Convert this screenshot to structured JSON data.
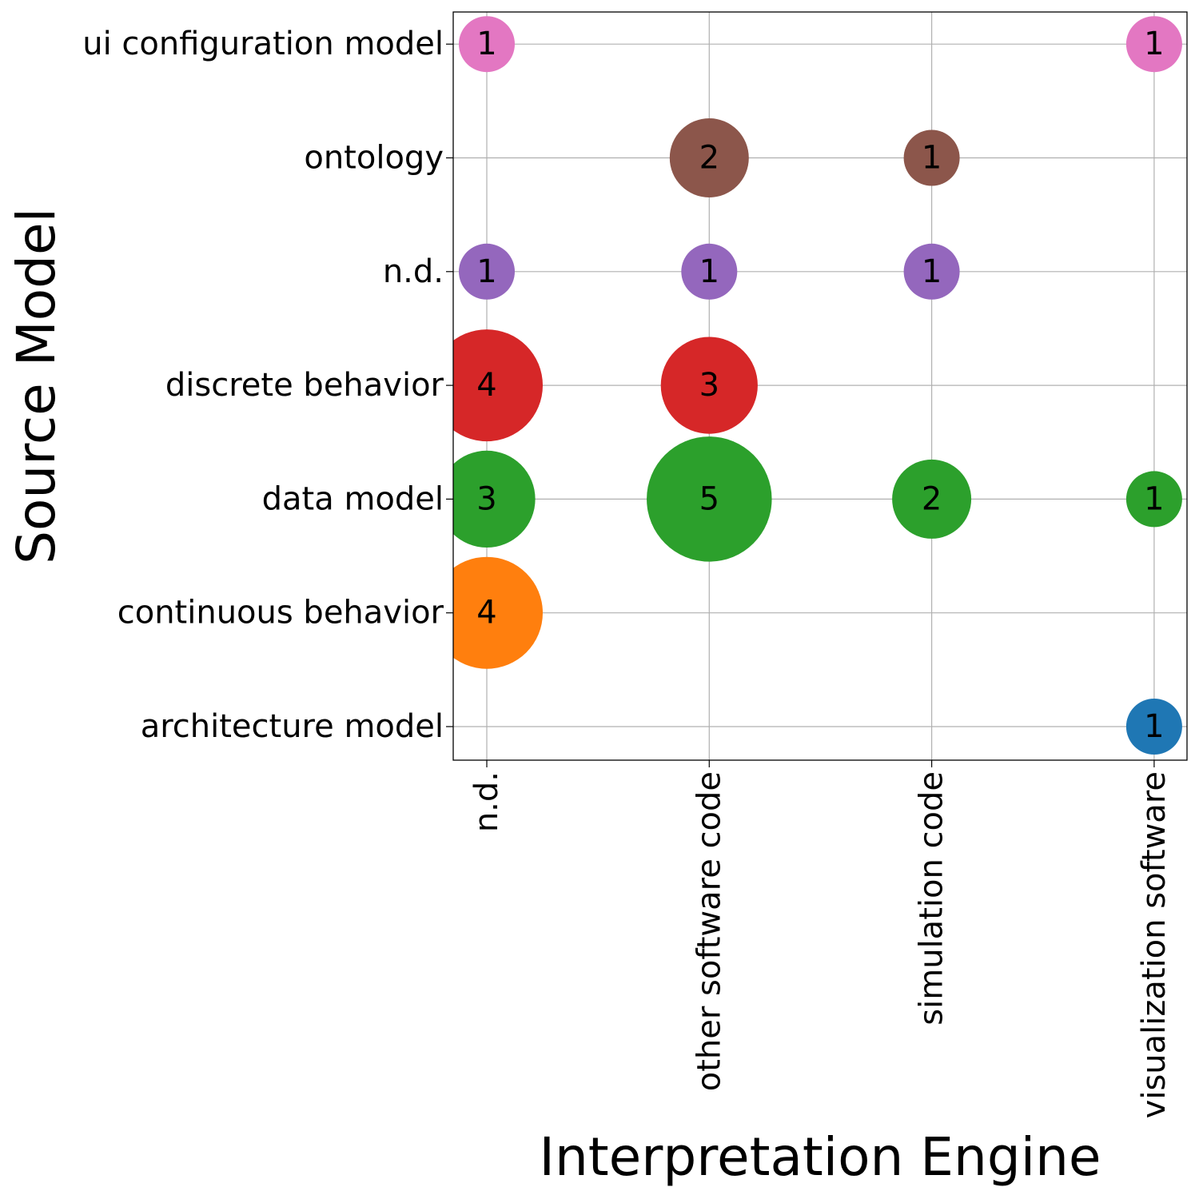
{
  "chart_data": {
    "type": "scatter",
    "subtype": "bubble",
    "title": "",
    "xlabel": "Interpretation Engine",
    "ylabel": "Source Model",
    "x_categories": [
      "n.d.",
      "other software code",
      "simulation code",
      "visualization software"
    ],
    "y_categories": [
      "architecture model",
      "continuous behavior",
      "data model",
      "discrete behavior",
      "n.d.",
      "ontology",
      "ui configuration model"
    ],
    "grid": true,
    "legend": "none",
    "series": [
      {
        "name": "architecture model",
        "color": "#1f77b4",
        "points": [
          {
            "x": "visualization software",
            "value": 1
          }
        ]
      },
      {
        "name": "continuous behavior",
        "color": "#ff7f0e",
        "points": [
          {
            "x": "n.d.",
            "value": 4
          }
        ]
      },
      {
        "name": "data model",
        "color": "#2ca02c",
        "points": [
          {
            "x": "n.d.",
            "value": 3
          },
          {
            "x": "other software code",
            "value": 5
          },
          {
            "x": "simulation code",
            "value": 2
          },
          {
            "x": "visualization software",
            "value": 1
          }
        ]
      },
      {
        "name": "discrete behavior",
        "color": "#d62728",
        "points": [
          {
            "x": "n.d.",
            "value": 4
          },
          {
            "x": "other software code",
            "value": 3
          }
        ]
      },
      {
        "name": "n.d.",
        "color": "#9467bd",
        "points": [
          {
            "x": "n.d.",
            "value": 1
          },
          {
            "x": "other software code",
            "value": 1
          },
          {
            "x": "simulation code",
            "value": 1
          }
        ]
      },
      {
        "name": "ontology",
        "color": "#8c564b",
        "points": [
          {
            "x": "other software code",
            "value": 2
          },
          {
            "x": "simulation code",
            "value": 1
          }
        ]
      },
      {
        "name": "ui configuration model",
        "color": "#e377c2",
        "points": [
          {
            "x": "n.d.",
            "value": 1
          },
          {
            "x": "visualization software",
            "value": 1
          }
        ]
      }
    ]
  }
}
